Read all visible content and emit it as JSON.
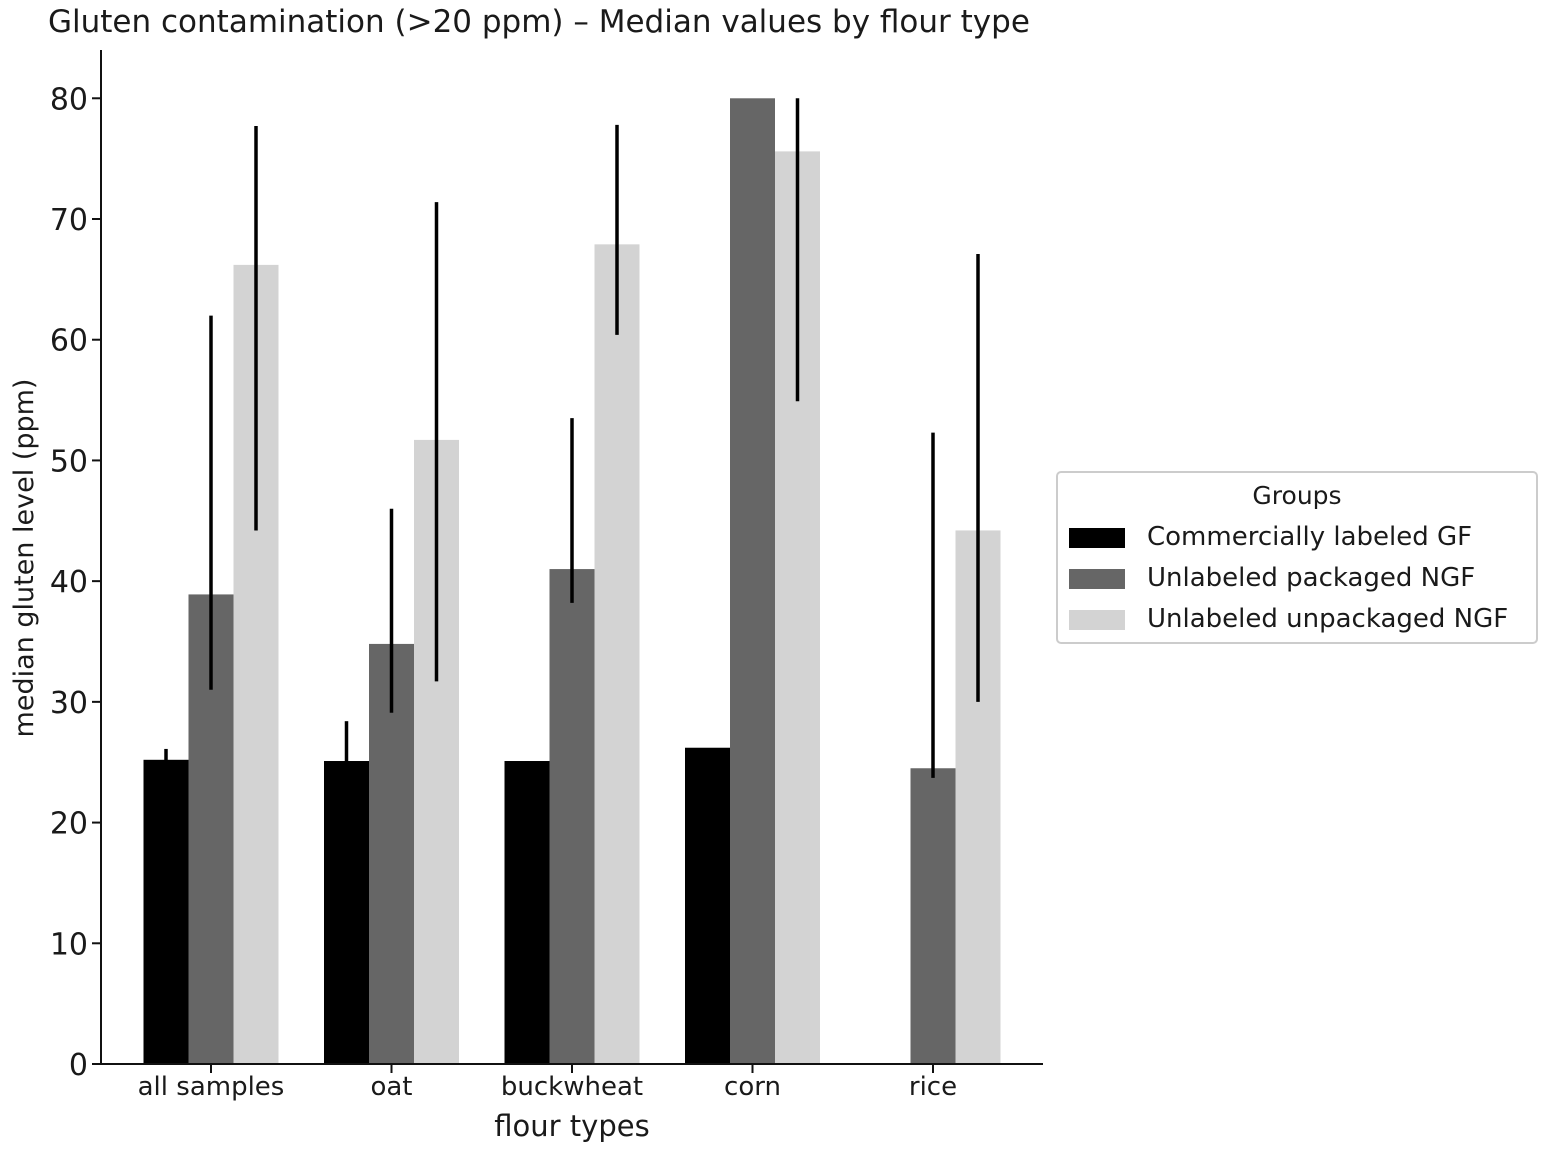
{
  "chart_data": {
    "type": "bar",
    "title": "Gluten contamination (>20 ppm) – Median values by flour type",
    "xlabel": "flour types",
    "ylabel": "median gluten level (ppm)",
    "ylim": [
      0,
      84
    ],
    "yticks": [
      0,
      10,
      20,
      30,
      40,
      50,
      60,
      70,
      80
    ],
    "categories": [
      "all samples",
      "oat",
      "buckwheat",
      "corn",
      "rice"
    ],
    "legend_title": "Groups",
    "legend_position": "right",
    "grid": false,
    "series": [
      {
        "name": "Commercially labeled GF",
        "color": "#000000",
        "values": [
          25.2,
          25.1,
          25.1,
          26.2,
          null
        ],
        "error_low": [
          25.0,
          25.0,
          25.0,
          null,
          null
        ],
        "error_high": [
          26.1,
          28.4,
          25.1,
          null,
          null
        ]
      },
      {
        "name": "Unlabeled packaged NGF",
        "color": "#666666",
        "values": [
          38.9,
          34.8,
          41.0,
          80.0,
          24.5
        ],
        "error_low": [
          31.0,
          29.1,
          38.2,
          null,
          23.7
        ],
        "error_high": [
          62.0,
          46.0,
          53.5,
          null,
          52.3
        ]
      },
      {
        "name": "Unlabeled unpackaged NGF",
        "color": "#d3d3d3",
        "values": [
          66.2,
          51.7,
          67.9,
          75.6,
          44.2
        ],
        "error_low": [
          44.2,
          31.7,
          60.4,
          54.9,
          30.0
        ],
        "error_high": [
          77.7,
          71.4,
          77.8,
          80.0,
          67.1
        ]
      }
    ]
  }
}
